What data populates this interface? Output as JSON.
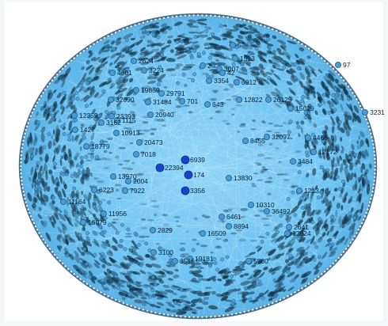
{
  "graph": {
    "colors": {
      "background": "#ffffff",
      "disk_fill": "#6cc3f2",
      "disk_fill_inner": "#8fd3f7",
      "rim": "#4a6e86",
      "edge_light": "#cfeefe",
      "edge_dark": "#0e2c40",
      "node_fill": "#4a9bd2",
      "node_stroke": "#1f5f8f",
      "hub_fill": "#1844c8",
      "label": "#0b2235"
    },
    "labeled_nodes": [
      {
        "id": "2624",
        "role": "peripheral"
      },
      {
        "id": "3224",
        "role": "peripheral"
      },
      {
        "id": "4801",
        "role": "peripheral"
      },
      {
        "id": "1513",
        "role": "peripheral"
      },
      {
        "id": "2",
        "role": "peripheral"
      },
      {
        "id": "3007",
        "role": "peripheral"
      },
      {
        "id": "42",
        "role": "peripheral"
      },
      {
        "id": "3354",
        "role": "peripheral"
      },
      {
        "id": "0912",
        "role": "peripheral"
      },
      {
        "id": "5",
        "role": "peripheral"
      },
      {
        "id": "19869",
        "role": "peripheral"
      },
      {
        "id": "29791",
        "role": "peripheral"
      },
      {
        "id": "32090",
        "role": "peripheral"
      },
      {
        "id": "31484",
        "role": "peripheral"
      },
      {
        "id": "701",
        "role": "peripheral"
      },
      {
        "id": "843",
        "role": "peripheral"
      },
      {
        "id": "12822",
        "role": "peripheral"
      },
      {
        "id": "26129",
        "role": "peripheral"
      },
      {
        "id": "15029",
        "role": "peripheral"
      },
      {
        "id": "12359",
        "role": "peripheral"
      },
      {
        "id": "23393",
        "role": "peripheral"
      },
      {
        "id": "20940",
        "role": "peripheral"
      },
      {
        "id": "3162",
        "role": "peripheral"
      },
      {
        "id": "1115",
        "role": "peripheral"
      },
      {
        "id": "1427",
        "role": "peripheral"
      },
      {
        "id": "18779",
        "role": "peripheral"
      },
      {
        "id": "10913",
        "role": "peripheral"
      },
      {
        "id": "20473",
        "role": "peripheral"
      },
      {
        "id": "8455",
        "role": "peripheral"
      },
      {
        "id": "32097",
        "role": "peripheral"
      },
      {
        "id": "4466",
        "role": "peripheral"
      },
      {
        "id": "12172",
        "role": "peripheral"
      },
      {
        "id": "7018",
        "role": "peripheral"
      },
      {
        "id": "6939",
        "role": "hub"
      },
      {
        "id": "22394",
        "role": "hub"
      },
      {
        "id": "174",
        "role": "hub"
      },
      {
        "id": "13970",
        "role": "peripheral"
      },
      {
        "id": "2004",
        "role": "peripheral"
      },
      {
        "id": "13830",
        "role": "peripheral"
      },
      {
        "id": "3484",
        "role": "peripheral"
      },
      {
        "id": "6223",
        "role": "peripheral"
      },
      {
        "id": "7922",
        "role": "peripheral"
      },
      {
        "id": "3356",
        "role": "hub"
      },
      {
        "id": "11164",
        "role": "peripheral"
      },
      {
        "id": "10310",
        "role": "peripheral"
      },
      {
        "id": "36492",
        "role": "peripheral"
      },
      {
        "id": "11956",
        "role": "peripheral"
      },
      {
        "id": "6461",
        "role": "peripheral"
      },
      {
        "id": "8894",
        "role": "peripheral"
      },
      {
        "id": "16509",
        "role": "peripheral"
      },
      {
        "id": "62824",
        "role": "peripheral"
      },
      {
        "id": "16079",
        "role": "peripheral"
      },
      {
        "id": "2829",
        "role": "peripheral"
      },
      {
        "id": "3100",
        "role": "peripheral"
      },
      {
        "id": "3516",
        "role": "peripheral"
      },
      {
        "id": "19181",
        "role": "peripheral"
      },
      {
        "id": "5580",
        "role": "peripheral"
      },
      {
        "id": "1213",
        "role": "peripheral"
      },
      {
        "id": "3231",
        "role": "peripheral"
      },
      {
        "id": "97",
        "role": "peripheral"
      },
      {
        "id": "2641",
        "role": "peripheral"
      }
    ]
  }
}
